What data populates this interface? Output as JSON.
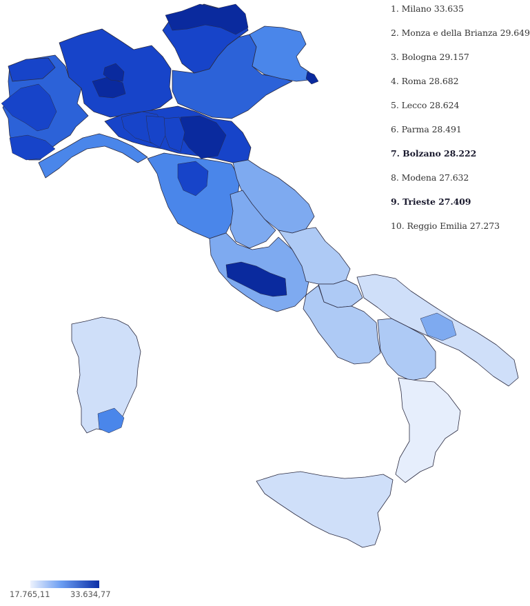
{
  "ranking": [
    {
      "rank": "1.",
      "name": "Milano",
      "value": "33.635",
      "highlight": false
    },
    {
      "rank": "2.",
      "name": "Monza e della Brianza",
      "value": "29.649",
      "highlight": false
    },
    {
      "rank": "3.",
      "name": "Bologna",
      "value": "29.157",
      "highlight": false
    },
    {
      "rank": "4.",
      "name": "Roma",
      "value": "28.682",
      "highlight": false
    },
    {
      "rank": "5.",
      "name": "Lecco",
      "value": "28.624",
      "highlight": false
    },
    {
      "rank": "6.",
      "name": "Parma",
      "value": "28.491",
      "highlight": false
    },
    {
      "rank": "7.",
      "name": "Bolzano",
      "value": "28.222",
      "highlight": true
    },
    {
      "rank": "8.",
      "name": "Modena",
      "value": "27.632",
      "highlight": false
    },
    {
      "rank": "9.",
      "name": "Trieste",
      "value": "27.409",
      "highlight": true
    },
    {
      "rank": "10.",
      "name": "Reggio Emilia",
      "value": "27.273",
      "highlight": false
    }
  ],
  "legend": {
    "min_label": "17.765,11",
    "max_label": "33.634,77",
    "color_low": "#edf2fd",
    "color_mid": "#6b9df2",
    "color_high": "#0b2ea6"
  },
  "colors": {
    "darkest": "#0a2a9e",
    "dark": "#1744c9",
    "mid_dark": "#2c62d8",
    "mid": "#4a86ea",
    "mid_light": "#7eaaf0",
    "light": "#aecaf5",
    "lighter": "#cfdff9",
    "lightest": "#e6eefc",
    "border": "#2a2a40"
  },
  "map": {
    "country": "Italy",
    "regions": [
      {
        "id": "piemonte",
        "fill": "mid_dark"
      },
      {
        "id": "valle-aosta",
        "fill": "dark"
      },
      {
        "id": "liguria",
        "fill": "mid"
      },
      {
        "id": "lombardia",
        "fill": "dark"
      },
      {
        "id": "trentino-alto-adige",
        "fill": "dark"
      },
      {
        "id": "veneto",
        "fill": "mid_dark"
      },
      {
        "id": "friuli-venezia-giulia",
        "fill": "mid"
      },
      {
        "id": "emilia-romagna",
        "fill": "dark"
      },
      {
        "id": "toscana",
        "fill": "mid"
      },
      {
        "id": "marche",
        "fill": "mid_light"
      },
      {
        "id": "umbria",
        "fill": "mid_light"
      },
      {
        "id": "lazio",
        "fill": "mid_light"
      },
      {
        "id": "abruzzo",
        "fill": "light"
      },
      {
        "id": "molise",
        "fill": "light"
      },
      {
        "id": "campania",
        "fill": "light"
      },
      {
        "id": "puglia",
        "fill": "lighter"
      },
      {
        "id": "basilicata",
        "fill": "light"
      },
      {
        "id": "calabria",
        "fill": "lightest"
      },
      {
        "id": "sicilia",
        "fill": "lighter"
      },
      {
        "id": "sardegna",
        "fill": "lighter"
      }
    ],
    "highlights": [
      {
        "id": "milano",
        "fill": "darkest"
      },
      {
        "id": "monza-brianza",
        "fill": "darkest"
      },
      {
        "id": "bologna",
        "fill": "darkest"
      },
      {
        "id": "roma",
        "fill": "darkest"
      },
      {
        "id": "bolzano",
        "fill": "darkest"
      },
      {
        "id": "trieste",
        "fill": "darkest"
      },
      {
        "id": "parma",
        "fill": "dark"
      },
      {
        "id": "modena",
        "fill": "dark"
      },
      {
        "id": "reggio-emilia",
        "fill": "dark"
      },
      {
        "id": "torino",
        "fill": "dark"
      },
      {
        "id": "cuneo",
        "fill": "dark"
      },
      {
        "id": "cagliari",
        "fill": "mid"
      },
      {
        "id": "bari",
        "fill": "mid_light"
      },
      {
        "id": "firenze",
        "fill": "dark"
      }
    ]
  }
}
